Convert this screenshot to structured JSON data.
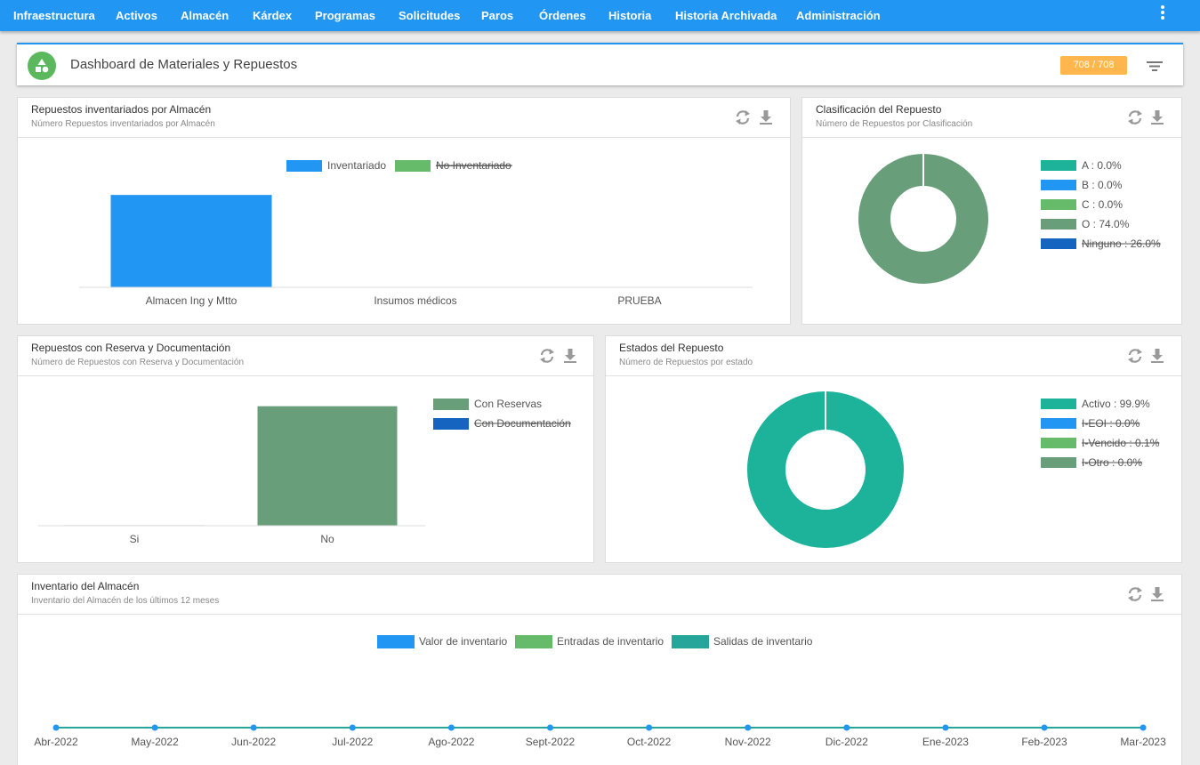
{
  "nav": {
    "items": [
      {
        "label": "Infraestructura"
      },
      {
        "label": "Activos"
      },
      {
        "label": "Almacén"
      },
      {
        "label": "Kárdex"
      },
      {
        "label": "Programas"
      },
      {
        "label": "Solicitudes"
      },
      {
        "label": "Paros"
      },
      {
        "label": "Órdenes"
      },
      {
        "label": "Historia"
      },
      {
        "label": "Historia Archivada"
      },
      {
        "label": "Administración"
      }
    ],
    "menu_icon": "more-vertical-icon"
  },
  "header": {
    "title": "Dashboard de Materiales y Repuestos",
    "count": "708 / 708",
    "filter_icon": "filter-icon"
  },
  "colors": {
    "primary": "#2196f3",
    "green": "#66bb6a",
    "sage": "#689f7a",
    "teal": "#1db39a",
    "dark_blue": "#1565c0",
    "orange": "#ffb74d"
  },
  "cards": {
    "almacen": {
      "title": "Repuestos inventariados por Almacén",
      "subtitle": "Número Repuestos inventariados por Almacén"
    },
    "clasificacion": {
      "title": "Clasificación del Repuesto",
      "subtitle": "Número de Repuestos por Clasificación"
    },
    "reserva": {
      "title": "Repuestos con Reserva y Documentación",
      "subtitle": "Número de Repuestos con Reserva y Documentación"
    },
    "estados": {
      "title": "Estados del Repuesto",
      "subtitle": "Número de Repuestos por estado"
    },
    "inventario": {
      "title": "Inventario del Almacén",
      "subtitle": "Inventario del Almacén de los últimos 12 meses"
    }
  },
  "chart_data": [
    {
      "id": "almacen",
      "type": "bar",
      "categories": [
        "Almacen Ing y Mtto",
        "Insumos médicos",
        "PRUEBA"
      ],
      "series": [
        {
          "name": "Inventariado",
          "values": [
            708,
            0,
            0
          ],
          "color": "#2196f3",
          "hidden": false
        },
        {
          "name": "No Inventariado",
          "values": [
            0,
            0,
            0
          ],
          "color": "#66bb6a",
          "hidden": true
        }
      ],
      "ylim": [
        0,
        750
      ]
    },
    {
      "id": "clasificacion",
      "type": "pie",
      "slices": [
        {
          "name": "A",
          "label": "A : 0.0%",
          "value": 0,
          "color": "#1db39a",
          "hidden": false
        },
        {
          "name": "B",
          "label": "B : 0.0%",
          "value": 0,
          "color": "#2196f3",
          "hidden": false
        },
        {
          "name": "C",
          "label": "C : 0.0%",
          "value": 0,
          "color": "#66bb6a",
          "hidden": false
        },
        {
          "name": "O",
          "label": "O : 74.0%",
          "value": 74.0,
          "color": "#689f7a",
          "hidden": false
        },
        {
          "name": "Ninguno",
          "label": "Ninguno : 26.0%",
          "value": 26.0,
          "color": "#1565c0",
          "hidden": true
        }
      ]
    },
    {
      "id": "reserva",
      "type": "bar",
      "categories": [
        "Si",
        "No"
      ],
      "series": [
        {
          "name": "Con Reservas",
          "values": [
            0,
            708
          ],
          "color": "#689f7a",
          "hidden": false
        },
        {
          "name": "Con Documentación",
          "values": [
            0,
            0
          ],
          "color": "#1565c0",
          "hidden": true
        }
      ],
      "ylim": [
        0,
        780
      ]
    },
    {
      "id": "estados",
      "type": "pie",
      "slices": [
        {
          "name": "Activo",
          "label": "Activo : 99.9%",
          "value": 99.9,
          "color": "#1db39a",
          "hidden": false
        },
        {
          "name": "I-EOI",
          "label": "I-EOI : 0.0%",
          "value": 0,
          "color": "#2196f3",
          "hidden": true
        },
        {
          "name": "I-Vencido",
          "label": "I-Vencido : 0.1%",
          "value": 0.1,
          "color": "#66bb6a",
          "hidden": true
        },
        {
          "name": "I-Otro",
          "label": "I-Otro : 0.0%",
          "value": 0,
          "color": "#689f7a",
          "hidden": true
        }
      ]
    },
    {
      "id": "inventario",
      "type": "line",
      "x": [
        "Abr-2022",
        "May-2022",
        "Jun-2022",
        "Jul-2022",
        "Ago-2022",
        "Sept-2022",
        "Oct-2022",
        "Nov-2022",
        "Dic-2022",
        "Ene-2023",
        "Feb-2023",
        "Mar-2023"
      ],
      "series": [
        {
          "name": "Valor de inventario",
          "values": [
            0,
            0,
            0,
            0,
            0,
            0,
            0,
            0,
            0,
            0,
            0,
            0
          ],
          "color": "#2196f3"
        },
        {
          "name": "Entradas de inventario",
          "values": [
            0,
            0,
            0,
            0,
            0,
            0,
            0,
            0,
            0,
            0,
            0,
            0
          ],
          "color": "#66bb6a"
        },
        {
          "name": "Salidas de inventario",
          "values": [
            0,
            0,
            0,
            0,
            0,
            0,
            0,
            0,
            0,
            0,
            0,
            0
          ],
          "color": "#26a69a"
        }
      ],
      "ylim": [
        0,
        1
      ]
    }
  ]
}
